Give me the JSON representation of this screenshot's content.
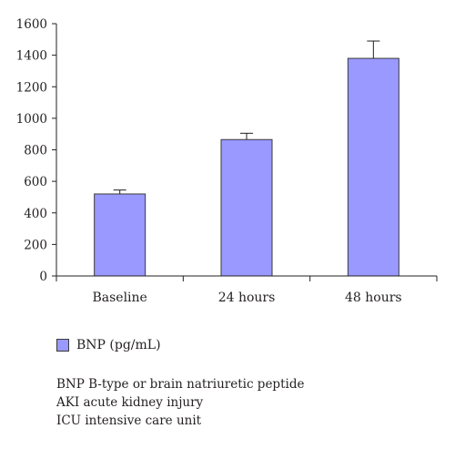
{
  "chart_data": {
    "type": "bar",
    "categories": [
      "Baseline",
      "24 hours",
      "48 hours"
    ],
    "series": [
      {
        "name": "BNP (pg/mL)",
        "values": [
          520,
          865,
          1380
        ],
        "error": [
          25,
          40,
          110
        ]
      }
    ],
    "y_ticks": [
      "0",
      "200",
      "400",
      "600",
      "800",
      "1000",
      "1200",
      "1400",
      "1600"
    ],
    "ylim": [
      0,
      1600
    ],
    "grid": false,
    "legend_position": "bottom-left",
    "bar_color": "#9999ff",
    "bar_edge_color": "#3a3a3a"
  },
  "legend": {
    "label": "BNP (pg/mL)"
  },
  "footnotes": [
    "BNP B-type or brain natriuretic peptide",
    "AKI acute kidney injury",
    "ICU intensive care unit"
  ]
}
